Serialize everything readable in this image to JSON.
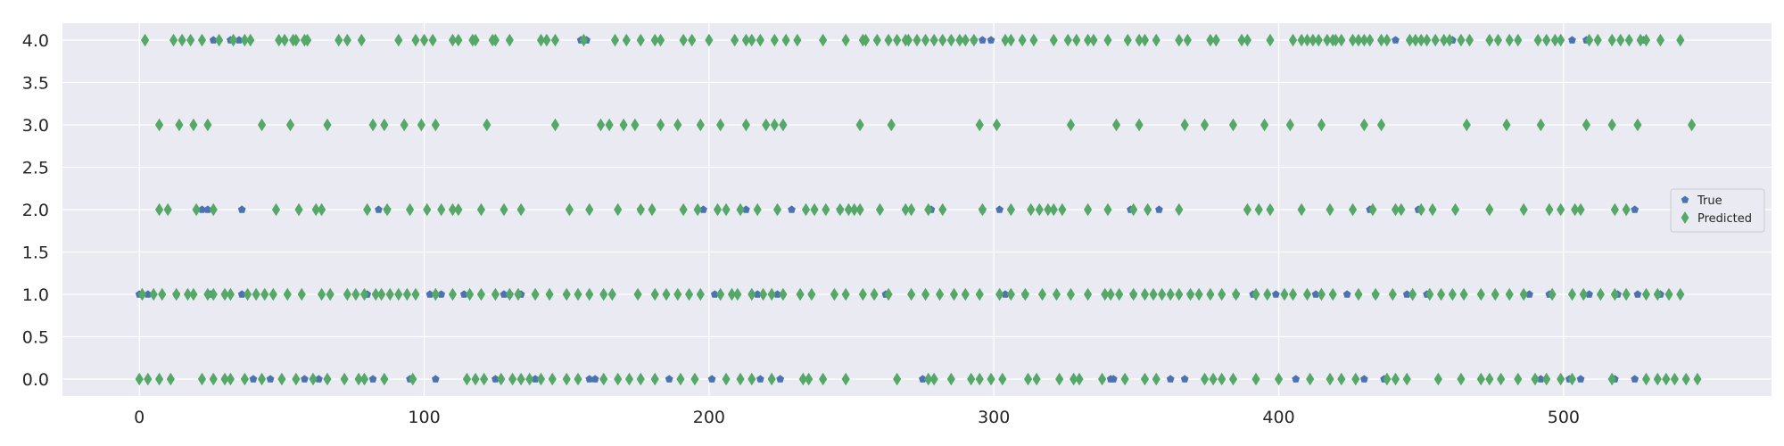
{
  "chart_data": {
    "type": "scatter",
    "title": "",
    "xlabel": "",
    "ylabel": "",
    "xlim": [
      -27,
      573
    ],
    "ylim": [
      -0.2,
      4.2
    ],
    "grid": true,
    "legend_position": "right",
    "x_ticks": [
      0,
      100,
      200,
      300,
      400,
      500
    ],
    "x_tick_labels": [
      "0",
      "100",
      "200",
      "300",
      "400",
      "500"
    ],
    "y_ticks": [
      0.0,
      0.5,
      1.0,
      1.5,
      2.0,
      2.5,
      3.0,
      3.5,
      4.0
    ],
    "y_tick_labels": [
      "0.0",
      "0.5",
      "1.0",
      "1.5",
      "2.0",
      "2.5",
      "3.0",
      "3.5",
      "4.0"
    ],
    "colors": {
      "background": "#EAEAF2",
      "grid": "#FFFFFF",
      "true": "#4C72B0",
      "predicted": "#55A868"
    },
    "series": [
      {
        "name": "True",
        "marker": "pentagon",
        "points": [
          {
            "y": 4,
            "x": [
              26,
              32,
              35,
              155,
              157,
              293,
              296,
              299,
              441,
              461,
              503,
              508,
              528
            ]
          },
          {
            "y": 2,
            "x": [
              22,
              24,
              36,
              84,
              87,
              176,
              198,
              213,
              229,
              246,
              278,
              296,
              302,
              348,
              358,
              432,
              449,
              525
            ]
          },
          {
            "y": 1,
            "x": [
              0,
              3,
              13,
              25,
              36,
              80,
              102,
              106,
              114,
              128,
              130,
              134,
              202,
              217,
              224,
              262,
              304,
              311,
              349,
              369,
              385,
              391,
              399,
              413,
              424,
              434,
              445,
              452,
              488,
              495,
              509,
              519,
              526,
              534
            ]
          },
          {
            "y": 0,
            "x": [
              40,
              46,
              58,
              63,
              82,
              95,
              104,
              125,
              139,
              158,
              160,
              186,
              201,
              218,
              225,
              275,
              341,
              342,
              362,
              367,
              406,
              430,
              437,
              492,
              502,
              506,
              518,
              525
            ]
          }
        ]
      },
      {
        "name": "Predicted",
        "marker": "diamond",
        "points": [
          {
            "y": 4,
            "x": [
              2,
              12,
              15,
              18,
              22,
              28,
              33,
              37,
              39,
              49,
              51,
              54,
              55,
              58,
              59,
              70,
              73,
              78,
              91,
              97,
              100,
              103,
              110,
              112,
              117,
              118,
              124,
              125,
              130,
              141,
              143,
              146,
              156,
              167,
              171,
              176,
              181,
              183,
              191,
              194,
              200,
              209,
              213,
              215,
              218,
              223,
              227,
              231,
              240,
              248,
              254,
              255,
              259,
              263,
              266,
              269,
              270,
              273,
              276,
              279,
              282,
              285,
              288,
              290,
              293,
              304,
              306,
              310,
              314,
              321,
              326,
              329,
              333,
              335,
              340,
              347,
              351,
              353,
              357,
              365,
              368,
              376,
              378,
              387,
              389,
              397,
              405,
              408,
              410,
              412,
              414,
              417,
              419,
              420,
              422,
              426,
              428,
              430,
              432,
              436,
              438,
              446,
              448,
              450,
              452,
              455,
              458,
              460,
              464,
              467,
              474,
              477,
              481,
              484,
              491,
              494,
              497,
              499,
              509,
              512,
              517,
              520,
              523,
              527,
              529,
              534,
              541
            ]
          },
          {
            "y": 3,
            "x": [
              7,
              14,
              19,
              24,
              43,
              53,
              66,
              82,
              86,
              93,
              99,
              104,
              122,
              146,
              162,
              165,
              170,
              174,
              183,
              189,
              197,
              204,
              213,
              220,
              223,
              226,
              253,
              264,
              295,
              301,
              327,
              343,
              351,
              367,
              374,
              384,
              395,
              404,
              415,
              430,
              436,
              466,
              480,
              492,
              508,
              517,
              526,
              545
            ]
          },
          {
            "y": 2,
            "x": [
              7,
              10,
              20,
              26,
              48,
              56,
              62,
              64,
              80,
              87,
              95,
              101,
              106,
              110,
              112,
              120,
              128,
              134,
              151,
              158,
              168,
              176,
              180,
              191,
              196,
              203,
              206,
              211,
              217,
              224,
              234,
              237,
              241,
              246,
              249,
              251,
              253,
              260,
              269,
              271,
              277,
              282,
              296,
              306,
              313,
              316,
              319,
              321,
              324,
              333,
              340,
              349,
              354,
              365,
              389,
              393,
              397,
              408,
              418,
              426,
              433,
              441,
              443,
              450,
              454,
              462,
              474,
              486,
              495,
              499,
              504,
              506,
              518,
              522
            ]
          },
          {
            "y": 1,
            "x": [
              1,
              5,
              8,
              13,
              17,
              19,
              24,
              26,
              30,
              32,
              38,
              41,
              44,
              47,
              52,
              57,
              64,
              67,
              73,
              76,
              79,
              83,
              85,
              88,
              91,
              94,
              97,
              104,
              110,
              116,
              120,
              125,
              130,
              133,
              139,
              144,
              150,
              154,
              158,
              163,
              166,
              175,
              181,
              185,
              189,
              193,
              197,
              204,
              208,
              210,
              215,
              219,
              222,
              226,
              232,
              236,
              244,
              248,
              254,
              258,
              263,
              271,
              276,
              281,
              286,
              290,
              295,
              302,
              306,
              311,
              317,
              322,
              327,
              333,
              339,
              341,
              344,
              349,
              353,
              356,
              359,
              362,
              365,
              369,
              372,
              376,
              380,
              385,
              392,
              396,
              402,
              405,
              410,
              415,
              419,
              428,
              434,
              440,
              447,
              453,
              457,
              461,
              465,
              471,
              476,
              481,
              486,
              496,
              503,
              507,
              513,
              518,
              522,
              529,
              533,
              537,
              541
            ]
          },
          {
            "y": 0,
            "x": [
              0,
              3,
              7,
              11,
              22,
              26,
              30,
              32,
              37,
              43,
              50,
              55,
              61,
              66,
              72,
              77,
              79,
              86,
              96,
              115,
              118,
              121,
              127,
              131,
              134,
              137,
              141,
              145,
              150,
              154,
              163,
              168,
              172,
              176,
              181,
              190,
              195,
              206,
              211,
              215,
              222,
              233,
              235,
              240,
              248,
              266,
              277,
              279,
              285,
              292,
              295,
              299,
              303,
              312,
              315,
              323,
              328,
              330,
              338,
              346,
              353,
              357,
              374,
              377,
              380,
              384,
              392,
              400,
              411,
              418,
              422,
              427,
              438,
              441,
              445,
              456,
              464,
              471,
              474,
              478,
              484,
              490,
              494,
              499,
              503,
              517,
              529,
              533,
              536,
              539,
              543,
              547
            ]
          }
        ]
      }
    ]
  }
}
